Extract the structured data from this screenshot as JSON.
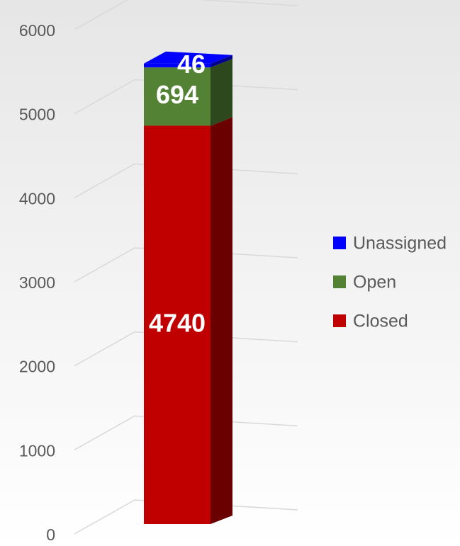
{
  "chart_data": {
    "type": "bar",
    "stacked": true,
    "categories": [
      null
    ],
    "series": [
      {
        "name": "Closed",
        "color": "#c00000",
        "values": [
          4740
        ]
      },
      {
        "name": "Open",
        "color": "#548235",
        "values": [
          694
        ]
      },
      {
        "name": "Unassigned",
        "color": "#0000ff",
        "values": [
          46
        ]
      }
    ],
    "ylim": [
      0,
      6000
    ],
    "yticks": [
      0,
      1000,
      2000,
      3000,
      4000,
      5000,
      6000
    ],
    "grid": true,
    "legend": "right"
  }
}
